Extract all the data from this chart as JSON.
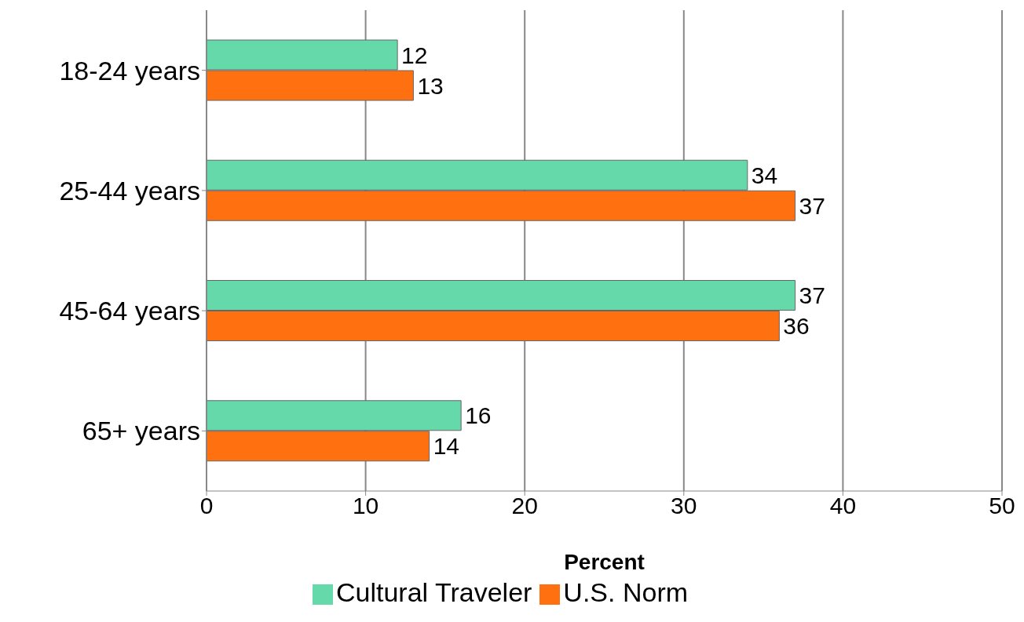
{
  "chart_data": {
    "type": "bar",
    "orientation": "horizontal",
    "categories": [
      "18-24 years",
      "25-44 years",
      "45-64 years",
      "65+ years"
    ],
    "series": [
      {
        "name": "Cultural Traveler",
        "color": "#66d9aa",
        "values": [
          12,
          34,
          37,
          16
        ]
      },
      {
        "name": "U.S. Norm",
        "color": "#ff7010",
        "values": [
          13,
          37,
          36,
          14
        ]
      }
    ],
    "xlim": [
      0,
      50
    ],
    "xticks": [
      0,
      10,
      20,
      30,
      40,
      50
    ],
    "xlabel": "Percent",
    "grid": "x",
    "legend": "bottom",
    "data_labels": true
  }
}
